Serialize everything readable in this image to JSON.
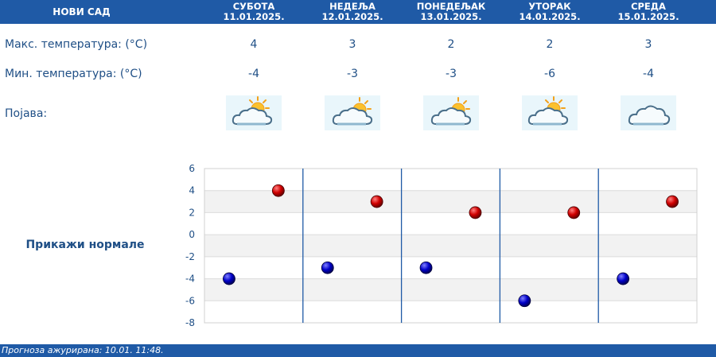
{
  "header": {
    "city": "НОВИ САД",
    "days": [
      {
        "name": "СУБОТА",
        "date": "11.01.2025."
      },
      {
        "name": "НЕДЕЉА",
        "date": "12.01.2025."
      },
      {
        "name": "ПОНЕДЕЉАК",
        "date": "13.01.2025."
      },
      {
        "name": "УТОРАК",
        "date": "14.01.2025."
      },
      {
        "name": "СРЕДА",
        "date": "15.01.2025."
      }
    ]
  },
  "rows": {
    "max_label": "Макс. температура: (°C)",
    "min_label": "Мин. температура: (°C)",
    "phen_label": "Појава:",
    "max": [
      "4",
      "3",
      "2",
      "2",
      "3"
    ],
    "min": [
      "-4",
      "-3",
      "-3",
      "-6",
      "-4"
    ],
    "icons": [
      "partly-cloudy-icon",
      "partly-cloudy-icon",
      "partly-cloudy-icon",
      "partly-cloudy-icon",
      "cloudy-icon"
    ]
  },
  "show_normals": "Прикажи нормале",
  "chart_data": {
    "type": "scatter",
    "categories": [
      "11.01.2025.",
      "12.01.2025.",
      "13.01.2025.",
      "14.01.2025.",
      "15.01.2025."
    ],
    "series": [
      {
        "values": [
          4,
          3,
          2,
          2,
          3
        ],
        "color": "#cc0000"
      },
      {
        "values": [
          -4,
          -3,
          -3,
          -6,
          -4
        ],
        "color": "#0000bb"
      }
    ],
    "ylim": [
      -8,
      6
    ],
    "yticks": [
      "6",
      "4",
      "2",
      "0",
      "-2",
      "-4",
      "-6",
      "-8"
    ],
    "grid": true
  },
  "footer": "Прогноза ажурирана:  10.01. 11:48."
}
